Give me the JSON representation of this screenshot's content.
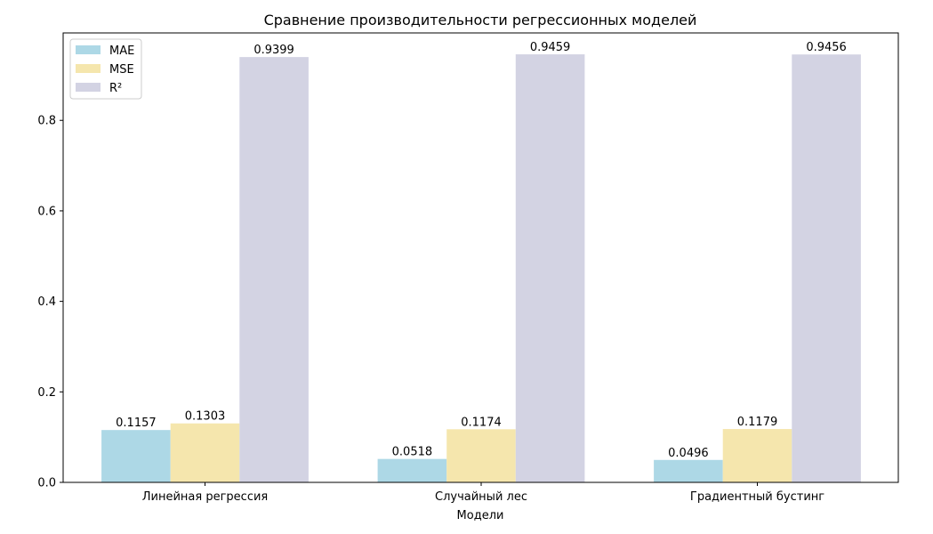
{
  "chart_data": {
    "type": "bar",
    "title": "Сравнение производительности регрессионных моделей",
    "xlabel": "Модели",
    "ylabel": "",
    "categories": [
      "Линейная регрессия",
      "Случайный лес",
      "Градиентный бустинг"
    ],
    "series": [
      {
        "name": "MAE",
        "values": [
          0.1157,
          0.0518,
          0.0496
        ],
        "color": "#add8e6"
      },
      {
        "name": "MSE",
        "values": [
          0.1303,
          0.1174,
          0.1179
        ],
        "color": "#f5e6ad"
      },
      {
        "name": "R²",
        "values": [
          0.9399,
          0.9459,
          0.9456
        ],
        "color": "#d3d3e3"
      }
    ],
    "data_labels": [
      [
        "0.1157",
        "0.0518",
        "0.0496"
      ],
      [
        "0.1303",
        "0.1174",
        "0.1179"
      ],
      [
        "0.9399",
        "0.9459",
        "0.9456"
      ]
    ],
    "ylim": [
      0,
      0.9932
    ],
    "yticks": [
      0.0,
      0.2,
      0.4,
      0.6,
      0.8
    ],
    "ytick_labels": [
      "0.0",
      "0.2",
      "0.4",
      "0.6",
      "0.8"
    ],
    "grid": false,
    "legend_position": "top-left"
  }
}
